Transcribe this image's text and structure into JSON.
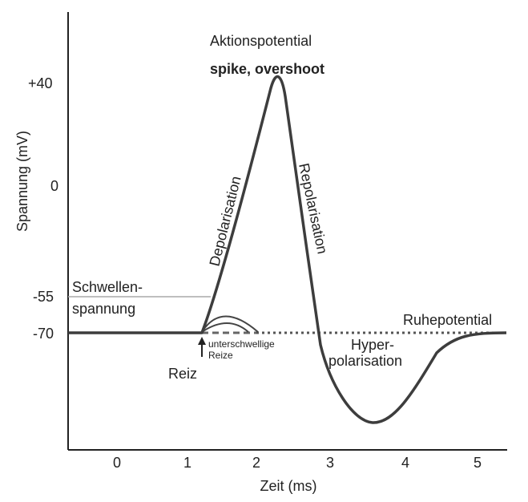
{
  "chart_data": {
    "type": "line",
    "xlabel": "Zeit (ms)",
    "ylabel": "Spannung (mV)",
    "xlim": [
      -0.7,
      5.4
    ],
    "ylim": [
      -150,
      80
    ],
    "x_ticks": [
      "0",
      "1",
      "2",
      "3",
      "4",
      "5"
    ],
    "y_ticks": [
      "+40",
      "0",
      "-55",
      "-70"
    ],
    "series": [
      {
        "x": [
          -0.7,
          1.2,
          1.5,
          2.0,
          2.3,
          2.55,
          2.8,
          3.1,
          3.5,
          3.8,
          4.1,
          4.5,
          5.0,
          5.4
        ],
        "y": [
          -70,
          -70,
          -55,
          10,
          40,
          0,
          -70,
          -110,
          -132,
          -125,
          -95,
          -78,
          -71,
          -70
        ]
      }
    ],
    "subthreshold_curves": [
      {
        "x": [
          1.2,
          1.5,
          1.9
        ],
        "y": [
          -70,
          -64,
          -70
        ]
      },
      {
        "x": [
          1.2,
          1.5,
          1.9
        ],
        "y": [
          -70,
          -66,
          -70
        ]
      }
    ],
    "annotations": {
      "title_line1": "Aktionspotential",
      "title_line2": "spike, overshoot",
      "depolarisation": "Depolarisation",
      "repolarisation": "Repolarisation",
      "schwellen_line1": "Schwellen-",
      "schwellen_line2": "spannung",
      "ruhepotential": "Ruhepotential",
      "hyper_line1": "Hyper-",
      "hyper_line2": "polarisation",
      "reiz": "Reiz",
      "unterschwellige_line1": "unterschwellige",
      "unterschwellige_line2": "Reize"
    },
    "colors": {
      "line": "#3d3d3d",
      "threshold": "#a8a8a8",
      "axis": "#222222"
    },
    "grid": false
  }
}
